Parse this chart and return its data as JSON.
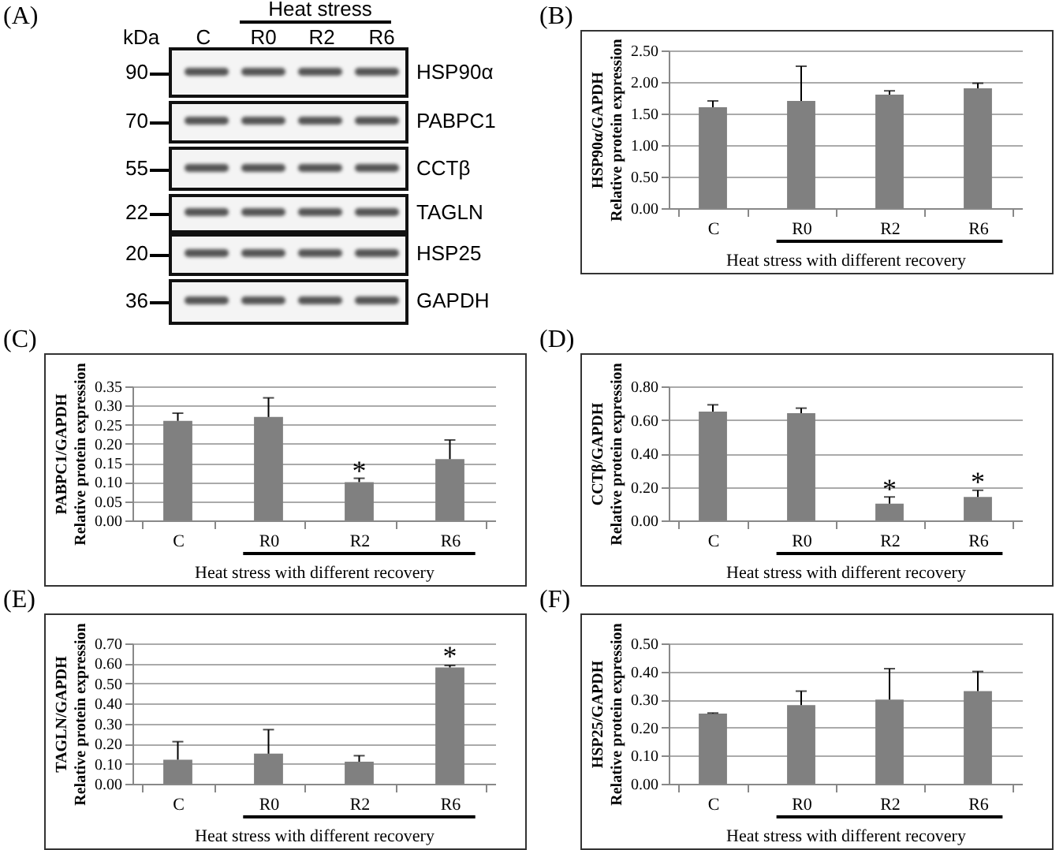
{
  "chart_data": [
    {
      "type": "other",
      "title": "(A)",
      "annotations": [
        "kDa",
        "C",
        "R0",
        "R2",
        "R6",
        "Heat stress",
        "90",
        "HSP90α",
        "70",
        "PABPC1",
        "55",
        "CCTβ",
        "22",
        "TAGLN",
        "20",
        "HSP25",
        "36",
        "GAPDH"
      ]
    },
    {
      "type": "bar",
      "title": "(B)",
      "ylabel": "HSP90α/GAPDH\nRelative protein expression",
      "xlabel": "Heat stress with different recovery",
      "categories": [
        "C",
        "R0",
        "R2",
        "R6"
      ],
      "values": [
        1.6,
        1.7,
        1.8,
        1.9
      ],
      "errors": [
        [
          1.6,
          1.7
        ],
        [
          1.7,
          2.25
        ],
        [
          1.8,
          1.86
        ],
        [
          1.9,
          1.98
        ]
      ],
      "color": "#808080",
      "ylim": [
        0,
        2.5
      ],
      "yticks": [
        {
          "value": 0,
          "label": "0.00"
        },
        {
          "value": 0.5,
          "label": "0.50"
        },
        {
          "value": 1,
          "label": "1.00"
        },
        {
          "value": 1.5,
          "label": "1.50"
        },
        {
          "value": 2,
          "label": "2.00"
        },
        {
          "value": 2.5,
          "label": "2.50"
        }
      ],
      "grid": "y"
    },
    {
      "type": "bar",
      "title": "(C)",
      "ylabel": "PABPC1/GAPDH\nRelative protein expression",
      "xlabel": "Heat stress with different recovery",
      "categories": [
        "C",
        "R0",
        "R2",
        "R6"
      ],
      "values": [
        0.26,
        0.27,
        0.1,
        0.16
      ],
      "errors": [
        [
          0.26,
          0.28
        ],
        [
          0.27,
          0.32
        ],
        [
          0.1,
          0.11
        ],
        [
          0.16,
          0.21
        ]
      ],
      "color": "#808080",
      "ylim": [
        0,
        0.35
      ],
      "yticks": [
        {
          "value": 0,
          "label": "0.00"
        },
        {
          "value": 0.05,
          "label": "0.05"
        },
        {
          "value": 0.1,
          "label": "0.10"
        },
        {
          "value": 0.15,
          "label": "0.15"
        },
        {
          "value": 0.2,
          "label": "0.20"
        },
        {
          "value": 0.25,
          "label": "0.25"
        },
        {
          "value": 0.3,
          "label": "0.30"
        },
        {
          "value": 0.35,
          "label": "0.35"
        }
      ],
      "grid": "y",
      "annotations": [
        {
          "text": "*",
          "x": "R2",
          "y": 0.125
        }
      ]
    },
    {
      "type": "bar",
      "title": "(D)",
      "ylabel": "CCTβ/GAPDH\nRelative protein expression",
      "xlabel": "Heat stress with different recovery",
      "categories": [
        "C",
        "R0",
        "R2",
        "R6"
      ],
      "values": [
        0.65,
        0.64,
        0.1,
        0.14
      ],
      "errors": [
        [
          0.65,
          0.69
        ],
        [
          0.64,
          0.67
        ],
        [
          0.1,
          0.14
        ],
        [
          0.14,
          0.18
        ]
      ],
      "color": "#808080",
      "ylim": [
        0,
        0.8
      ],
      "yticks": [
        {
          "value": 0,
          "label": "0.00"
        },
        {
          "value": 0.2,
          "label": "0.20"
        },
        {
          "value": 0.4,
          "label": "0.40"
        },
        {
          "value": 0.6,
          "label": "0.60"
        },
        {
          "value": 0.8,
          "label": "0.80"
        }
      ],
      "grid": "y",
      "annotations": [
        {
          "text": "*",
          "x": "R2",
          "y": 0.18
        },
        {
          "text": "*",
          "x": "R6",
          "y": 0.22
        }
      ]
    },
    {
      "type": "bar",
      "title": "(E)",
      "ylabel": "TAGLN/GAPDH\nRelative protein expression",
      "xlabel": "Heat stress with different recovery",
      "categories": [
        "C",
        "R0",
        "R2",
        "R6"
      ],
      "values": [
        0.12,
        0.15,
        0.11,
        0.58
      ],
      "errors": [
        [
          0.12,
          0.21
        ],
        [
          0.15,
          0.27
        ],
        [
          0.11,
          0.14
        ],
        [
          0.58,
          0.59
        ]
      ],
      "color": "#808080",
      "ylim": [
        0,
        0.7
      ],
      "yticks": [
        {
          "value": 0,
          "label": "0.00"
        },
        {
          "value": 0.1,
          "label": "0.10"
        },
        {
          "value": 0.2,
          "label": "0.20"
        },
        {
          "value": 0.3,
          "label": "0.30"
        },
        {
          "value": 0.4,
          "label": "0.40"
        },
        {
          "value": 0.5,
          "label": "0.50"
        },
        {
          "value": 0.6,
          "label": "0.60"
        },
        {
          "value": 0.7,
          "label": "0.70"
        }
      ],
      "grid": "y",
      "annotations": [
        {
          "text": "*",
          "x": "R6",
          "y": 0.63
        }
      ]
    },
    {
      "type": "bar",
      "title": "(F)",
      "ylabel": "HSP25/GAPDH\nRelative protein expression",
      "xlabel": "Heat stress with different recovery",
      "categories": [
        "C",
        "R0",
        "R2",
        "R6"
      ],
      "values": [
        0.25,
        0.28,
        0.3,
        0.33
      ],
      "errors": [
        [
          0.25,
          0.252
        ],
        [
          0.28,
          0.33
        ],
        [
          0.3,
          0.41
        ],
        [
          0.33,
          0.4
        ]
      ],
      "color": "#808080",
      "ylim": [
        0,
        0.5
      ],
      "yticks": [
        {
          "value": 0,
          "label": "0.00"
        },
        {
          "value": 0.1,
          "label": "0.10"
        },
        {
          "value": 0.2,
          "label": "0.20"
        },
        {
          "value": 0.3,
          "label": "0.30"
        },
        {
          "value": 0.4,
          "label": "0.40"
        },
        {
          "value": 0.5,
          "label": "0.50"
        }
      ],
      "grid": "y"
    }
  ]
}
